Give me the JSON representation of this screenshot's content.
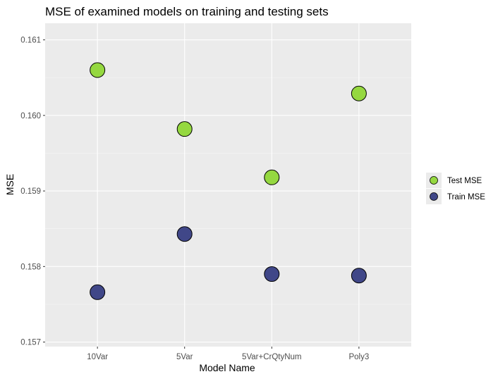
{
  "chart_data": {
    "type": "scatter",
    "title": "MSE of examined models on training and testing sets",
    "xlabel": "Model Name",
    "ylabel": "MSE",
    "categories": [
      "10Var",
      "5Var",
      "5Var+CrQtyNum",
      "Poly3"
    ],
    "ylim": [
      0.15694,
      0.16122
    ],
    "yticks": [
      0.157,
      0.158,
      0.159,
      0.16,
      0.161
    ],
    "ytick_labels": [
      "0.157",
      "0.158",
      "0.159",
      "0.160",
      "0.161"
    ],
    "grid": true,
    "legend_position": "right",
    "series": [
      {
        "name": "Test MSE",
        "color": "#95d840",
        "values": [
          0.1606,
          0.15982,
          0.15918,
          0.16029
        ]
      },
      {
        "name": "Train MSE",
        "color": "#404788",
        "values": [
          0.15766,
          0.15843,
          0.1579,
          0.15788
        ]
      }
    ]
  }
}
